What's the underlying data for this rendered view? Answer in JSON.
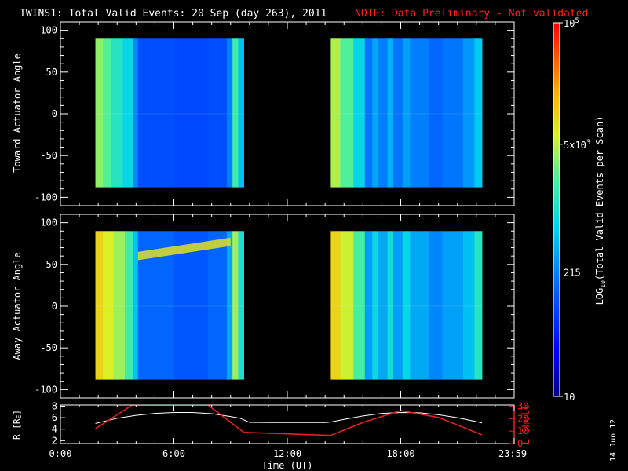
{
  "header": {
    "title": "TWINS1: Total Valid Events: 20 Sep (day 263), 2011",
    "note": "NOTE: Data Preliminary - Not validated"
  },
  "colors": {
    "background": "#000000",
    "foreground": "#ffffff",
    "note": "#ff2020",
    "lshell": "#e82020",
    "radius": "#ffffff"
  },
  "chart_data": [
    {
      "type": "heatmap",
      "panel": "toward",
      "ylabel": "Toward Actuator Angle",
      "ylim": [
        -110,
        110
      ],
      "yticks": [
        -100,
        -50,
        0,
        50,
        100
      ],
      "ytick_labels": [
        "-100",
        "-50",
        "0",
        "50",
        "100"
      ],
      "xlim": [
        0,
        24
      ],
      "data_extent_y": [
        -88,
        90
      ],
      "blocks": [
        {
          "start_hour": 1.85,
          "end_hour": 9.7,
          "columns": [
            {
              "x0": 1.85,
              "x1": 2.25,
              "value": 3.55
            },
            {
              "x0": 2.25,
              "x1": 2.7,
              "value": 3.35
            },
            {
              "x0": 2.7,
              "x1": 3.3,
              "value": 3.1
            },
            {
              "x0": 3.3,
              "x1": 3.85,
              "value": 2.85
            },
            {
              "x0": 3.85,
              "x1": 4.1,
              "value": 2.35
            },
            {
              "x0": 4.1,
              "x1": 6.0,
              "value": 2.0
            },
            {
              "x0": 6.0,
              "x1": 7.8,
              "value": 1.95
            },
            {
              "x0": 7.8,
              "x1": 8.8,
              "value": 2.0
            },
            {
              "x0": 8.8,
              "x1": 9.1,
              "value": 2.3
            },
            {
              "x0": 9.1,
              "x1": 9.4,
              "value": 3.25
            },
            {
              "x0": 9.4,
              "x1": 9.7,
              "value": 2.7
            }
          ]
        },
        {
          "start_hour": 14.3,
          "end_hour": 22.3,
          "columns": [
            {
              "x0": 14.3,
              "x1": 14.8,
              "value": 3.65
            },
            {
              "x0": 14.8,
              "x1": 15.5,
              "value": 3.35
            },
            {
              "x0": 15.5,
              "x1": 16.1,
              "value": 2.85
            },
            {
              "x0": 16.1,
              "x1": 16.5,
              "value": 2.25
            },
            {
              "x0": 16.5,
              "x1": 16.8,
              "value": 2.55
            },
            {
              "x0": 16.8,
              "x1": 17.3,
              "value": 2.3
            },
            {
              "x0": 17.3,
              "x1": 17.6,
              "value": 2.6
            },
            {
              "x0": 17.6,
              "x1": 18.1,
              "value": 2.25
            },
            {
              "x0": 18.1,
              "x1": 18.5,
              "value": 2.5
            },
            {
              "x0": 18.5,
              "x1": 19.5,
              "value": 2.3
            },
            {
              "x0": 19.5,
              "x1": 20.2,
              "value": 2.15
            },
            {
              "x0": 20.2,
              "x1": 21.3,
              "value": 2.25
            },
            {
              "x0": 21.3,
              "x1": 21.9,
              "value": 2.45
            },
            {
              "x0": 21.9,
              "x1": 22.3,
              "value": 2.75
            }
          ]
        }
      ]
    },
    {
      "type": "heatmap",
      "panel": "away",
      "ylabel": "Away Actuator Angle",
      "ylim": [
        -110,
        110
      ],
      "yticks": [
        -100,
        -50,
        0,
        50,
        100
      ],
      "ytick_labels": [
        "-100",
        "-50",
        "0",
        "50",
        "100"
      ],
      "xlim": [
        0,
        24
      ],
      "data_extent_y": [
        -88,
        90
      ],
      "blocks": [
        {
          "start_hour": 1.85,
          "end_hour": 9.7,
          "columns": [
            {
              "x0": 1.85,
              "x1": 2.25,
              "value": 4.0
            },
            {
              "x0": 2.25,
              "x1": 2.8,
              "value": 3.8
            },
            {
              "x0": 2.8,
              "x1": 3.4,
              "value": 3.6
            },
            {
              "x0": 3.4,
              "x1": 3.85,
              "value": 3.25
            },
            {
              "x0": 3.85,
              "x1": 4.1,
              "value": 2.7
            },
            {
              "x0": 4.1,
              "x1": 6.0,
              "value": 2.15
            },
            {
              "x0": 6.0,
              "x1": 7.8,
              "value": 2.05
            },
            {
              "x0": 7.8,
              "x1": 8.8,
              "value": 2.15
            },
            {
              "x0": 8.8,
              "x1": 9.1,
              "value": 2.55
            },
            {
              "x0": 9.1,
              "x1": 9.4,
              "value": 3.6
            },
            {
              "x0": 9.4,
              "x1": 9.7,
              "value": 3.0
            }
          ]
        },
        {
          "start_hour": 14.3,
          "end_hour": 22.3,
          "columns": [
            {
              "x0": 14.3,
              "x1": 14.8,
              "value": 4.0
            },
            {
              "x0": 14.8,
              "x1": 15.5,
              "value": 3.75
            },
            {
              "x0": 15.5,
              "x1": 16.1,
              "value": 3.3
            },
            {
              "x0": 16.1,
              "x1": 16.5,
              "value": 2.5
            },
            {
              "x0": 16.5,
              "x1": 16.8,
              "value": 2.9
            },
            {
              "x0": 16.8,
              "x1": 17.3,
              "value": 2.55
            },
            {
              "x0": 17.3,
              "x1": 17.6,
              "value": 2.95
            },
            {
              "x0": 17.6,
              "x1": 18.1,
              "value": 2.5
            },
            {
              "x0": 18.1,
              "x1": 18.5,
              "value": 2.85
            },
            {
              "x0": 18.5,
              "x1": 19.5,
              "value": 2.55
            },
            {
              "x0": 19.5,
              "x1": 20.2,
              "value": 2.35
            },
            {
              "x0": 20.2,
              "x1": 21.3,
              "value": 2.5
            },
            {
              "x0": 21.3,
              "x1": 21.9,
              "value": 2.7
            },
            {
              "x0": 21.9,
              "x1": 22.3,
              "value": 3.1
            }
          ]
        }
      ],
      "features": [
        {
          "type": "band",
          "x0": 4.1,
          "x1": 9.0,
          "y_start": 65,
          "y_end": 82,
          "value": 3.9
        }
      ]
    },
    {
      "type": "line",
      "panel": "ephemeris",
      "xlabel": "Time (UT)",
      "x_tick_labels": [
        "0:00",
        "6:00",
        "12:00",
        "18:00",
        "23:59"
      ],
      "x_ticks": [
        0,
        6,
        12,
        18,
        24
      ],
      "ylabel_left": "R [R",
      "ylabel_left_sub": "E",
      "ylabel_left_close": "]",
      "ylim_left": [
        1.5,
        8.2
      ],
      "yticks_left": [
        2,
        4,
        6,
        8
      ],
      "ytick_labels_left": [
        "2",
        "4",
        "6",
        "8"
      ],
      "ylabel_right": "L Shell",
      "ylim_right": [
        0,
        31
      ],
      "yticks_right": [
        0,
        10,
        20,
        30
      ],
      "ytick_labels_right": [
        "0",
        "10",
        "20",
        "30"
      ],
      "series": [
        {
          "axis": "left",
          "x": [
            1.85,
            3,
            4,
            5,
            6,
            7,
            8,
            9,
            9.5,
            10,
            11,
            12,
            13,
            14,
            14.3,
            15,
            16,
            17,
            18,
            19,
            20,
            21,
            22.3
          ],
          "y": [
            5.0,
            5.9,
            6.4,
            6.75,
            6.9,
            6.9,
            6.7,
            6.2,
            5.9,
            5.2,
            5.15,
            5.15,
            5.15,
            5.15,
            5.25,
            5.7,
            6.3,
            6.75,
            6.9,
            6.85,
            6.5,
            6.0,
            5.1
          ]
        },
        {
          "axis": "right",
          "x": [
            1.85,
            3.8,
            7.8,
            9.7,
            14.3,
            16,
            18,
            20,
            22.3
          ],
          "y": [
            12,
            31,
            31,
            9,
            6.5,
            17,
            26.5,
            21,
            7
          ]
        }
      ]
    }
  ],
  "colorbar": {
    "label": "LOG",
    "label_sub": "10",
    "label_rest": "(Total Valid Events per Scan)",
    "range": [
      1,
      5
    ],
    "ticks": [
      {
        "value": 5,
        "base": "10",
        "exp": "5"
      },
      {
        "value": 3.699,
        "base": "5x10",
        "exp": "3"
      },
      {
        "value": 2.332,
        "label": "215"
      },
      {
        "value": 1,
        "label": "10"
      }
    ]
  },
  "footer": {
    "date_stamp": "14 Jun 12"
  }
}
